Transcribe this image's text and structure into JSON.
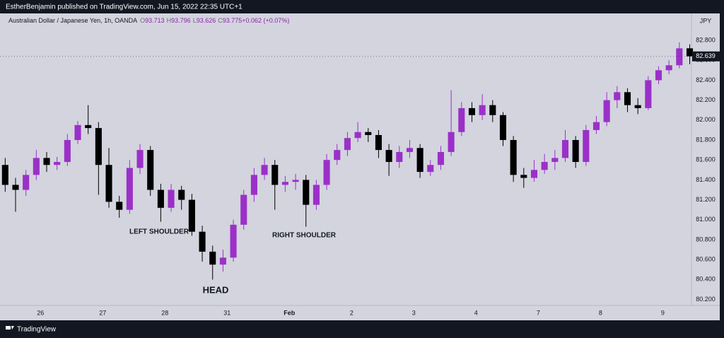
{
  "header": {
    "text": "EstherBenjamin published on TradingView.com, Jun 15, 2022 22:35 UTC+1"
  },
  "chart_data": {
    "type": "candlestick",
    "symbol": "Australian Dollar / Japanese Yen, 1h, OANDA",
    "ohlc_legend": [
      {
        "label": "O",
        "value": "93.713"
      },
      {
        "label": "H",
        "value": "93.796"
      },
      {
        "label": "L",
        "value": "93.626"
      },
      {
        "label": "C",
        "value": "93.775"
      },
      {
        "label": "",
        "value": "+0.062 (+0.07%)"
      }
    ],
    "currency": "JPY",
    "annotations": [
      "LEFT SHOULDER",
      "HEAD",
      "RIGHT SHOULDER"
    ],
    "last_price": 82.639,
    "up_color": "#9b30c8",
    "down_color": "#000000",
    "grid": false,
    "ylim": [
      80.14,
      83.07
    ],
    "yticks": [
      {
        "value": 80.2,
        "label": "80.200"
      },
      {
        "value": 80.4,
        "label": "80.400"
      },
      {
        "value": 80.6,
        "label": "80.600"
      },
      {
        "value": 80.8,
        "label": "80.800"
      },
      {
        "value": 81.0,
        "label": "81.000"
      },
      {
        "value": 81.2,
        "label": "81.200"
      },
      {
        "value": 81.4,
        "label": "81.400"
      },
      {
        "value": 81.6,
        "label": "81.600"
      },
      {
        "value": 81.8,
        "label": "81.800"
      },
      {
        "value": 82.0,
        "label": "82.000"
      },
      {
        "value": 82.2,
        "label": "82.200"
      },
      {
        "value": 82.4,
        "label": "82.400"
      },
      {
        "value": 82.6,
        "label": "82.600"
      },
      {
        "value": 82.8,
        "label": "82.800"
      }
    ],
    "xlim": [
      0,
      66.67
    ],
    "xticks": [
      {
        "value": 3.9,
        "label": "26"
      },
      {
        "value": 9.9,
        "label": "27"
      },
      {
        "value": 15.9,
        "label": "28"
      },
      {
        "value": 21.9,
        "label": "31"
      },
      {
        "value": 27.9,
        "label": "Feb"
      },
      {
        "value": 33.9,
        "label": "2"
      },
      {
        "value": 39.9,
        "label": "3"
      },
      {
        "value": 45.9,
        "label": "4"
      },
      {
        "value": 51.9,
        "label": "7"
      },
      {
        "value": 57.9,
        "label": "8"
      },
      {
        "value": 63.9,
        "label": "9"
      }
    ],
    "candles": [
      [
        81.55,
        81.62,
        81.28,
        81.35
      ],
      [
        81.35,
        81.42,
        81.08,
        81.3
      ],
      [
        81.3,
        81.5,
        81.24,
        81.45
      ],
      [
        81.45,
        81.7,
        81.4,
        81.62
      ],
      [
        81.62,
        81.68,
        81.48,
        81.55
      ],
      [
        81.55,
        81.63,
        81.5,
        81.58
      ],
      [
        81.58,
        81.86,
        81.54,
        81.8
      ],
      [
        81.8,
        81.99,
        81.76,
        81.95
      ],
      [
        81.95,
        82.15,
        81.86,
        81.92
      ],
      [
        81.92,
        81.98,
        81.25,
        81.55
      ],
      [
        81.55,
        81.72,
        81.12,
        81.18
      ],
      [
        81.18,
        81.24,
        81.02,
        81.1
      ],
      [
        81.1,
        81.6,
        81.06,
        81.52
      ],
      [
        81.52,
        81.76,
        81.46,
        81.7
      ],
      [
        81.7,
        81.74,
        81.24,
        81.3
      ],
      [
        81.3,
        81.36,
        80.98,
        81.12
      ],
      [
        81.12,
        81.36,
        81.08,
        81.3
      ],
      [
        81.3,
        81.34,
        81.1,
        81.2
      ],
      [
        81.2,
        81.26,
        80.84,
        80.88
      ],
      [
        80.88,
        80.94,
        80.58,
        80.68
      ],
      [
        80.68,
        80.74,
        80.4,
        80.55
      ],
      [
        80.55,
        80.7,
        80.48,
        80.62
      ],
      [
        80.62,
        81.0,
        80.58,
        80.95
      ],
      [
        80.95,
        81.3,
        80.9,
        81.25
      ],
      [
        81.25,
        81.52,
        81.18,
        81.45
      ],
      [
        81.45,
        81.62,
        81.4,
        81.55
      ],
      [
        81.55,
        81.6,
        81.1,
        81.35
      ],
      [
        81.35,
        81.44,
        81.28,
        81.38
      ],
      [
        81.38,
        81.46,
        81.3,
        81.4
      ],
      [
        81.4,
        81.45,
        80.93,
        81.15
      ],
      [
        81.15,
        81.4,
        81.1,
        81.35
      ],
      [
        81.35,
        81.66,
        81.3,
        81.6
      ],
      [
        81.6,
        81.76,
        81.55,
        81.7
      ],
      [
        81.7,
        81.88,
        81.64,
        81.82
      ],
      [
        81.82,
        81.98,
        81.78,
        81.88
      ],
      [
        81.88,
        81.92,
        81.78,
        81.85
      ],
      [
        81.85,
        81.9,
        81.62,
        81.7
      ],
      [
        81.7,
        81.76,
        81.44,
        81.58
      ],
      [
        81.58,
        81.74,
        81.52,
        81.68
      ],
      [
        81.68,
        81.8,
        81.62,
        81.72
      ],
      [
        81.72,
        81.76,
        81.42,
        81.48
      ],
      [
        81.48,
        81.6,
        81.44,
        81.55
      ],
      [
        81.55,
        81.74,
        81.5,
        81.68
      ],
      [
        81.68,
        82.3,
        81.64,
        81.88
      ],
      [
        81.88,
        82.18,
        81.84,
        82.12
      ],
      [
        82.12,
        82.18,
        81.98,
        82.05
      ],
      [
        82.05,
        82.26,
        82.0,
        82.15
      ],
      [
        82.15,
        82.2,
        81.98,
        82.05
      ],
      [
        82.05,
        82.08,
        81.74,
        81.8
      ],
      [
        81.8,
        81.84,
        81.38,
        81.45
      ],
      [
        81.45,
        81.52,
        81.32,
        81.42
      ],
      [
        81.42,
        81.6,
        81.38,
        81.5
      ],
      [
        81.5,
        81.66,
        81.46,
        81.58
      ],
      [
        81.58,
        81.7,
        81.5,
        81.62
      ],
      [
        81.62,
        81.9,
        81.58,
        81.8
      ],
      [
        81.8,
        81.84,
        81.52,
        81.58
      ],
      [
        81.58,
        81.95,
        81.54,
        81.9
      ],
      [
        81.9,
        82.04,
        81.86,
        81.98
      ],
      [
        81.98,
        82.28,
        81.94,
        82.2
      ],
      [
        82.2,
        82.34,
        82.12,
        82.28
      ],
      [
        82.28,
        82.32,
        82.08,
        82.15
      ],
      [
        82.15,
        82.22,
        82.06,
        82.12
      ],
      [
        82.12,
        82.44,
        82.1,
        82.4
      ],
      [
        82.4,
        82.54,
        82.36,
        82.5
      ],
      [
        82.5,
        82.6,
        82.46,
        82.55
      ],
      [
        82.55,
        82.78,
        82.52,
        82.72
      ],
      [
        82.72,
        82.76,
        82.56,
        82.64
      ]
    ]
  },
  "footer": {
    "brand": "TradingView"
  }
}
